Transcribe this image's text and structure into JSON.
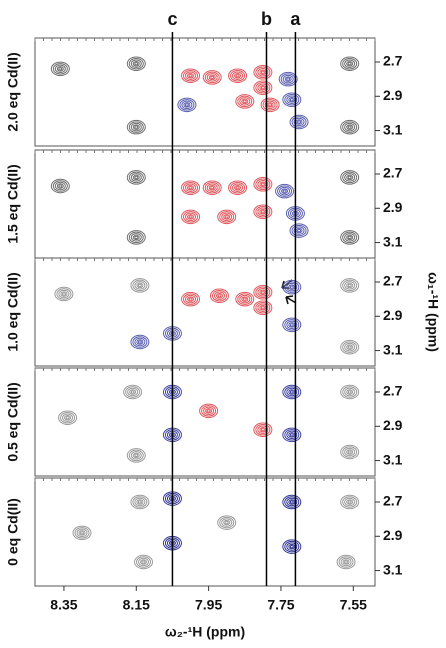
{
  "chart_data": {
    "type": "contour",
    "xlabel": "ω₂-¹H (ppm)",
    "ylabel": "ω₁-¹H (ppm)",
    "xlim": [
      8.43,
      7.49
    ],
    "xticks": [
      8.35,
      8.15,
      7.95,
      7.75,
      7.55
    ],
    "ylim": [
      2.56,
      3.19
    ],
    "yticks": [
      2.7,
      2.9,
      3.1
    ],
    "lines": [
      {
        "label": "c",
        "x": 8.05
      },
      {
        "label": "b",
        "x": 7.79
      },
      {
        "label": "a",
        "x": 7.71
      }
    ],
    "panels": [
      {
        "label": "2.0 eq Cd(II)",
        "series": [
          {
            "color": "#6e6e6e",
            "x": [
              8.36,
              8.15,
              8.15,
              7.56,
              7.56
            ],
            "y": [
              2.74,
              2.71,
              3.08,
              2.71,
              3.08
            ]
          },
          {
            "color": "#e0585e",
            "x": [
              8.0,
              7.94,
              7.87,
              7.8,
              7.8,
              7.78,
              7.85
            ],
            "y": [
              2.78,
              2.79,
              2.78,
              2.76,
              2.85,
              2.95,
              2.93
            ]
          },
          {
            "color": "#5a5fb0",
            "x": [
              8.01,
              7.73,
              7.72,
              7.7
            ],
            "y": [
              2.95,
              2.8,
              2.92,
              3.05
            ]
          }
        ]
      },
      {
        "label": "1.5 eq Cd(II)",
        "series": [
          {
            "color": "#6e6e6e",
            "x": [
              8.36,
              8.15,
              8.15,
              7.56,
              7.56
            ],
            "y": [
              2.77,
              2.72,
              3.07,
              2.72,
              3.07
            ]
          },
          {
            "color": "#e0585e",
            "x": [
              8.0,
              7.94,
              7.87,
              7.8,
              7.8,
              8.0,
              7.9
            ],
            "y": [
              2.78,
              2.78,
              2.78,
              2.76,
              2.92,
              2.95,
              2.95
            ]
          },
          {
            "color": "#5a5fb0",
            "x": [
              7.74,
              7.71,
              7.7
            ],
            "y": [
              2.8,
              2.93,
              3.03
            ]
          }
        ]
      },
      {
        "label": "1.0 eq Cd(II)",
        "series": [
          {
            "color": "#9a9a9a",
            "x": [
              8.35,
              8.14,
              7.56,
              7.56
            ],
            "y": [
              2.77,
              2.72,
              2.72,
              3.08
            ]
          },
          {
            "color": "#e0585e",
            "x": [
              8.0,
              7.92,
              7.85,
              7.8,
              7.8
            ],
            "y": [
              2.8,
              2.78,
              2.8,
              2.76,
              2.85
            ]
          },
          {
            "color": "#5a5fb0",
            "x": [
              8.14,
              8.05,
              7.72,
              7.72
            ],
            "y": [
              3.05,
              3.0,
              2.73,
              2.95
            ]
          }
        ]
      },
      {
        "label": "0.5 eq Cd(II)",
        "series": [
          {
            "color": "#9a9a9a",
            "x": [
              8.34,
              8.16,
              8.15,
              7.56,
              7.56
            ],
            "y": [
              2.85,
              2.7,
              3.07,
              2.7,
              3.05
            ]
          },
          {
            "color": "#3e44a4",
            "x": [
              8.05,
              8.05,
              7.72,
              7.72
            ],
            "y": [
              2.7,
              2.95,
              2.7,
              2.95
            ]
          },
          {
            "color": "#e0585e",
            "x": [
              7.95,
              7.8
            ],
            "y": [
              2.81,
              2.92
            ]
          }
        ]
      },
      {
        "label": "0 eq Cd(II)",
        "series": [
          {
            "color": "#9a9a9a",
            "x": [
              8.3,
              8.14,
              8.13,
              7.9,
              7.56,
              7.57
            ],
            "y": [
              2.88,
              2.7,
              3.05,
              2.82,
              2.7,
              3.05
            ]
          },
          {
            "color": "#2e3494",
            "x": [
              8.05,
              8.05,
              7.72,
              7.72
            ],
            "y": [
              2.68,
              2.94,
              2.7,
              2.96
            ]
          }
        ]
      }
    ]
  }
}
